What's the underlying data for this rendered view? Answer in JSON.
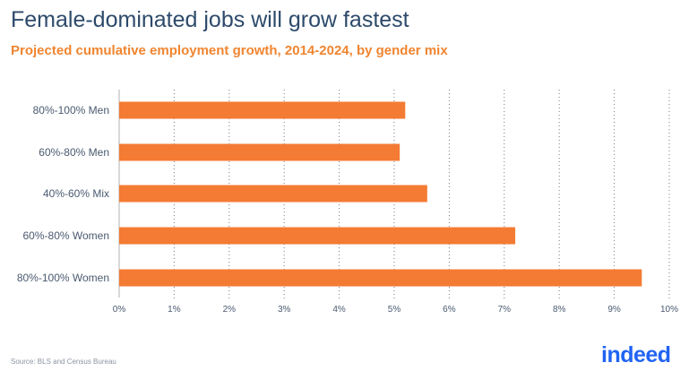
{
  "header": {
    "title": "Female-dominated jobs will grow fastest",
    "subtitle": "Projected cumulative employment growth, 2014-2024, by gender mix"
  },
  "footer": {
    "source": "Source: BLS and Census Bureau",
    "logo_text": "indeed"
  },
  "colors": {
    "bar": "#f47b33",
    "title": "#2d4a6b",
    "subtitle": "#f08530",
    "grid": "#7a7a7a",
    "axis_text": "#4a5a70",
    "logo": "#2164f3"
  },
  "chart_data": {
    "type": "bar",
    "orientation": "horizontal",
    "title": "Female-dominated jobs will grow fastest",
    "subtitle": "Projected cumulative employment growth, 2014-2024, by gender mix",
    "categories": [
      "80%-100% Men",
      "60%-80% Men",
      "40%-60% Mix",
      "60%-80% Women",
      "80%-100% Women"
    ],
    "values": [
      5.2,
      5.1,
      5.6,
      7.2,
      9.5
    ],
    "xlim": [
      0,
      10
    ],
    "xticks": [
      0,
      1,
      2,
      3,
      4,
      5,
      6,
      7,
      8,
      9,
      10
    ],
    "tick_labels": [
      "0%",
      "1%",
      "2%",
      "3%",
      "4%",
      "5%",
      "6%",
      "7%",
      "8%",
      "9%",
      "10%"
    ],
    "xlabel": "",
    "ylabel": "",
    "grid": "vertical dotted",
    "legend": "none"
  }
}
